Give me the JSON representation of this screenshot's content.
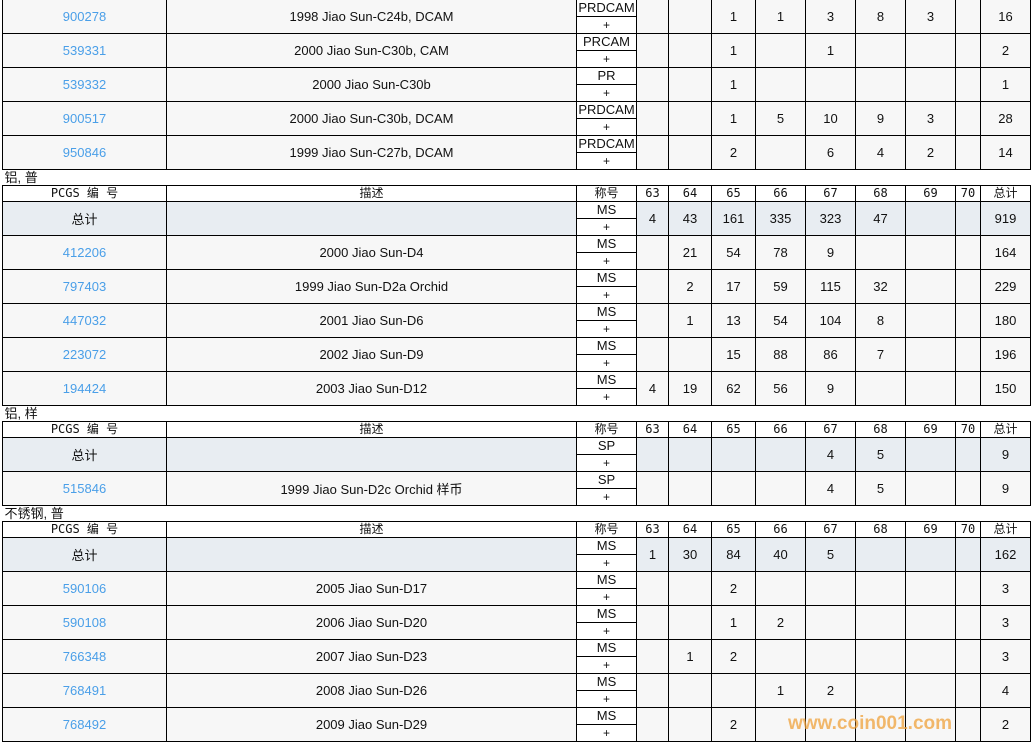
{
  "header": {
    "pcgs": "PCGS 编 号",
    "desc": "描述",
    "designation": "称号",
    "grades": [
      "63",
      "64",
      "65",
      "66",
      "67",
      "68",
      "69",
      "70"
    ],
    "total": "总计"
  },
  "total_label": "总计",
  "plus": "+",
  "sections": [
    {
      "label": "",
      "show_header": false,
      "total": null,
      "rows": [
        {
          "pcgs": "900278",
          "desc": "1998 Jiao Sun-C24b, DCAM",
          "des": "PRDCAM",
          "g": [
            "",
            "",
            "1",
            "1",
            "3",
            "8",
            "3",
            ""
          ],
          "total": "16"
        },
        {
          "pcgs": "539331",
          "desc": "2000 Jiao Sun-C30b, CAM",
          "des": "PRCAM",
          "g": [
            "",
            "",
            "1",
            "",
            "1",
            "",
            "",
            ""
          ],
          "total": "2"
        },
        {
          "pcgs": "539332",
          "desc": "2000 Jiao Sun-C30b",
          "des": "PR",
          "g": [
            "",
            "",
            "1",
            "",
            "",
            "",
            "",
            ""
          ],
          "total": "1"
        },
        {
          "pcgs": "900517",
          "desc": "2000 Jiao Sun-C30b, DCAM",
          "des": "PRDCAM",
          "g": [
            "",
            "",
            "1",
            "5",
            "10",
            "9",
            "3",
            ""
          ],
          "total": "28"
        },
        {
          "pcgs": "950846",
          "desc": "1999 Jiao Sun-C27b, DCAM",
          "des": "PRDCAM",
          "g": [
            "",
            "",
            "2",
            "",
            "6",
            "4",
            "2",
            ""
          ],
          "total": "14"
        }
      ]
    },
    {
      "label": "铝, 普",
      "show_header": true,
      "total": {
        "des": "MS",
        "g": [
          "4",
          "43",
          "161",
          "335",
          "323",
          "47",
          "",
          ""
        ],
        "total": "919"
      },
      "rows": [
        {
          "pcgs": "412206",
          "desc": "2000 Jiao Sun-D4",
          "des": "MS",
          "g": [
            "",
            "21",
            "54",
            "78",
            "9",
            "",
            "",
            ""
          ],
          "total": "164"
        },
        {
          "pcgs": "797403",
          "desc": "1999 Jiao Sun-D2a Orchid",
          "des": "MS",
          "g": [
            "",
            "2",
            "17",
            "59",
            "115",
            "32",
            "",
            ""
          ],
          "total": "229"
        },
        {
          "pcgs": "447032",
          "desc": "2001 Jiao Sun-D6",
          "des": "MS",
          "g": [
            "",
            "1",
            "13",
            "54",
            "104",
            "8",
            "",
            ""
          ],
          "total": "180"
        },
        {
          "pcgs": "223072",
          "desc": "2002 Jiao Sun-D9",
          "des": "MS",
          "g": [
            "",
            "",
            "15",
            "88",
            "86",
            "7",
            "",
            ""
          ],
          "total": "196"
        },
        {
          "pcgs": "194424",
          "desc": "2003 Jiao Sun-D12",
          "des": "MS",
          "g": [
            "4",
            "19",
            "62",
            "56",
            "9",
            "",
            "",
            ""
          ],
          "total": "150"
        }
      ]
    },
    {
      "label": "铝, 样",
      "show_header": true,
      "total": {
        "des": "SP",
        "g": [
          "",
          "",
          "",
          "",
          "4",
          "5",
          "",
          ""
        ],
        "total": "9"
      },
      "rows": [
        {
          "pcgs": "515846",
          "desc": "1999 Jiao Sun-D2c Orchid 样币",
          "des": "SP",
          "g": [
            "",
            "",
            "",
            "",
            "4",
            "5",
            "",
            ""
          ],
          "total": "9"
        }
      ]
    },
    {
      "label": "不锈钢, 普",
      "show_header": true,
      "total": {
        "des": "MS",
        "g": [
          "1",
          "30",
          "84",
          "40",
          "5",
          "",
          "",
          ""
        ],
        "total": "162"
      },
      "rows": [
        {
          "pcgs": "590106",
          "desc": "2005 Jiao Sun-D17",
          "des": "MS",
          "g": [
            "",
            "",
            "2",
            "",
            "",
            "",
            "",
            ""
          ],
          "total": "3"
        },
        {
          "pcgs": "590108",
          "desc": "2006 Jiao Sun-D20",
          "des": "MS",
          "g": [
            "",
            "",
            "1",
            "2",
            "",
            "",
            "",
            ""
          ],
          "total": "3"
        },
        {
          "pcgs": "766348",
          "desc": "2007 Jiao Sun-D23",
          "des": "MS",
          "g": [
            "",
            "1",
            "2",
            "",
            "",
            "",
            "",
            ""
          ],
          "total": "3"
        },
        {
          "pcgs": "768491",
          "desc": "2008 Jiao Sun-D26",
          "des": "MS",
          "g": [
            "",
            "",
            "",
            "1",
            "2",
            "",
            "",
            ""
          ],
          "total": "4"
        },
        {
          "pcgs": "768492",
          "desc": "2009 Jiao Sun-D29",
          "des": "MS",
          "g": [
            "",
            "",
            "2",
            "",
            "",
            "",
            "",
            ""
          ],
          "total": "2"
        }
      ]
    }
  ],
  "watermark": "www.coin001.com"
}
